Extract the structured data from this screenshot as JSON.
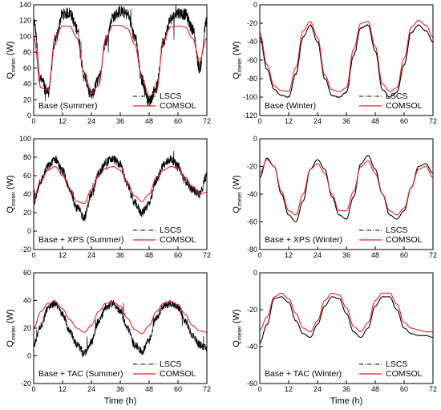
{
  "colors": {
    "lscs": "#000000",
    "comsol": "#e8202a",
    "axis": "#000000"
  },
  "legend": {
    "lscs": "LSCS",
    "comsol": "COMSOL"
  },
  "shared_x": {
    "label": "Time (h)",
    "ticks": [
      "0",
      "12",
      "24",
      "36",
      "48",
      "60",
      "72"
    ],
    "range": [
      0,
      72
    ]
  },
  "y_label": {
    "main": "Q",
    "sub": "meter",
    "unit": " (W)"
  },
  "chart_data": [
    {
      "type": "line",
      "title": "Base (Summer)",
      "xlim": [
        0,
        72
      ],
      "ylim": [
        0,
        140
      ],
      "yticks": [
        "0",
        "20",
        "40",
        "60",
        "80",
        "100",
        "120",
        "140"
      ],
      "legend_position": "bottom-right",
      "grid": false,
      "series": [
        {
          "name": "LSCS",
          "line": "dash-dot",
          "noise": 0.22,
          "x": [
            0,
            3,
            6,
            9,
            12,
            15,
            18,
            21,
            24,
            27,
            30,
            33,
            36,
            39,
            42,
            45,
            48,
            51,
            54,
            57,
            60,
            63,
            66,
            69,
            72
          ],
          "values": [
            120,
            45,
            30,
            95,
            128,
            130,
            110,
            50,
            25,
            45,
            95,
            125,
            132,
            128,
            100,
            45,
            18,
            35,
            95,
            122,
            130,
            128,
            110,
            60,
            120
          ]
        },
        {
          "name": "COMSOL",
          "line": "solid",
          "x": [
            0,
            3,
            6,
            9,
            12,
            15,
            18,
            21,
            24,
            27,
            30,
            33,
            36,
            39,
            42,
            45,
            48,
            51,
            54,
            57,
            60,
            63,
            66,
            69,
            72
          ],
          "values": [
            100,
            35,
            32,
            100,
            113,
            113,
            98,
            55,
            28,
            38,
            98,
            114,
            114,
            110,
            90,
            48,
            24,
            30,
            96,
            112,
            113,
            112,
            98,
            70,
            98
          ]
        }
      ]
    },
    {
      "type": "line",
      "title": "Base (Winter)",
      "xlim": [
        0,
        72
      ],
      "ylim": [
        -120,
        0
      ],
      "yticks": [
        "-120",
        "-100",
        "-80",
        "-60",
        "-40",
        "-20",
        "0"
      ],
      "legend_position": "bottom-right",
      "grid": false,
      "series": [
        {
          "name": "LSCS",
          "line": "dash-dot",
          "noise": 0.02,
          "x": [
            0,
            3,
            6,
            9,
            12,
            15,
            18,
            21,
            24,
            27,
            30,
            33,
            36,
            39,
            42,
            45,
            48,
            51,
            54,
            57,
            60,
            63,
            66,
            69,
            72
          ],
          "values": [
            -35,
            -70,
            -92,
            -98,
            -100,
            -75,
            -35,
            -22,
            -40,
            -80,
            -98,
            -100,
            -95,
            -55,
            -25,
            -22,
            -50,
            -92,
            -100,
            -95,
            -65,
            -30,
            -22,
            -28,
            -40
          ]
        },
        {
          "name": "COMSOL",
          "line": "solid",
          "x": [
            0,
            3,
            6,
            9,
            12,
            15,
            18,
            21,
            24,
            27,
            30,
            33,
            36,
            39,
            42,
            45,
            48,
            51,
            54,
            57,
            60,
            63,
            66,
            69,
            72
          ],
          "values": [
            -30,
            -65,
            -88,
            -93,
            -94,
            -68,
            -28,
            -18,
            -35,
            -76,
            -92,
            -94,
            -90,
            -48,
            -20,
            -18,
            -45,
            -86,
            -94,
            -90,
            -58,
            -24,
            -17,
            -22,
            -35
          ]
        }
      ]
    },
    {
      "type": "line",
      "title": "Base + XPS (Summer)",
      "xlim": [
        0,
        72
      ],
      "ylim": [
        -20,
        100
      ],
      "yticks": [
        "-20",
        "0",
        "20",
        "40",
        "60",
        "80",
        "100"
      ],
      "legend_position": "bottom-right",
      "grid": false,
      "series": [
        {
          "name": "LSCS",
          "line": "dash-dot",
          "noise": 0.16,
          "x": [
            0,
            3,
            6,
            9,
            12,
            15,
            18,
            21,
            24,
            27,
            30,
            33,
            36,
            39,
            42,
            45,
            48,
            51,
            54,
            57,
            60,
            63,
            66,
            69,
            72
          ],
          "values": [
            30,
            55,
            70,
            78,
            65,
            45,
            25,
            15,
            40,
            62,
            75,
            78,
            72,
            50,
            30,
            20,
            30,
            55,
            72,
            78,
            70,
            55,
            45,
            40,
            60
          ]
        },
        {
          "name": "COMSOL",
          "line": "solid",
          "x": [
            0,
            3,
            6,
            9,
            12,
            15,
            18,
            21,
            24,
            27,
            30,
            33,
            36,
            39,
            42,
            45,
            48,
            51,
            54,
            57,
            60,
            63,
            66,
            69,
            72
          ],
          "values": [
            35,
            55,
            66,
            70,
            60,
            45,
            32,
            30,
            45,
            60,
            68,
            70,
            66,
            52,
            38,
            32,
            40,
            58,
            66,
            70,
            68,
            58,
            48,
            40,
            42
          ]
        }
      ]
    },
    {
      "type": "line",
      "title": "Base + XPS (Winter)",
      "xlim": [
        0,
        72
      ],
      "ylim": [
        -80,
        0
      ],
      "yticks": [
        "-80",
        "-60",
        "-40",
        "-20",
        "0"
      ],
      "legend_position": "bottom-right",
      "grid": false,
      "series": [
        {
          "name": "LSCS",
          "line": "dash-dot",
          "noise": 0.0,
          "x": [
            0,
            3,
            6,
            9,
            12,
            15,
            18,
            21,
            24,
            27,
            30,
            33,
            36,
            39,
            42,
            45,
            48,
            51,
            54,
            57,
            60,
            63,
            66,
            69,
            72
          ],
          "values": [
            -28,
            -14,
            -20,
            -40,
            -55,
            -60,
            -45,
            -22,
            -15,
            -22,
            -42,
            -55,
            -58,
            -42,
            -18,
            -12,
            -22,
            -40,
            -55,
            -58,
            -52,
            -35,
            -20,
            -18,
            -25
          ]
        },
        {
          "name": "COMSOL",
          "line": "solid",
          "x": [
            0,
            3,
            6,
            9,
            12,
            15,
            18,
            21,
            24,
            27,
            30,
            33,
            36,
            39,
            42,
            45,
            48,
            51,
            54,
            57,
            60,
            63,
            66,
            69,
            72
          ],
          "values": [
            -25,
            -15,
            -20,
            -38,
            -52,
            -55,
            -40,
            -22,
            -18,
            -25,
            -40,
            -52,
            -52,
            -38,
            -20,
            -16,
            -25,
            -40,
            -52,
            -55,
            -50,
            -35,
            -22,
            -20,
            -28
          ]
        }
      ]
    },
    {
      "type": "line",
      "title": "Base + TAC (Summer)",
      "xlim": [
        0,
        72
      ],
      "ylim": [
        -20,
        60
      ],
      "yticks": [
        "-20",
        "0",
        "20",
        "40",
        "60"
      ],
      "legend_position": "bottom-right",
      "grid": false,
      "series": [
        {
          "name": "LSCS",
          "line": "dash-dot",
          "noise": 0.14,
          "x": [
            0,
            3,
            6,
            9,
            12,
            15,
            18,
            21,
            24,
            27,
            30,
            33,
            36,
            39,
            42,
            45,
            48,
            51,
            54,
            57,
            60,
            63,
            66,
            69,
            72
          ],
          "values": [
            8,
            22,
            35,
            38,
            30,
            18,
            8,
            2,
            10,
            25,
            35,
            38,
            32,
            20,
            8,
            3,
            12,
            28,
            36,
            38,
            35,
            25,
            15,
            8,
            5
          ]
        },
        {
          "name": "COMSOL",
          "line": "solid",
          "x": [
            0,
            3,
            6,
            9,
            12,
            15,
            18,
            21,
            24,
            27,
            30,
            33,
            36,
            39,
            42,
            45,
            48,
            51,
            54,
            57,
            60,
            63,
            66,
            69,
            72
          ],
          "values": [
            20,
            32,
            38,
            39,
            34,
            26,
            20,
            17,
            22,
            32,
            38,
            39,
            36,
            27,
            19,
            16,
            22,
            32,
            38,
            39,
            37,
            30,
            22,
            18,
            17
          ]
        }
      ]
    },
    {
      "type": "line",
      "title": "Base + TAC (Winter)",
      "xlim": [
        0,
        72
      ],
      "ylim": [
        -60,
        0
      ],
      "yticks": [
        "-60",
        "-40",
        "-20",
        "0"
      ],
      "legend_position": "bottom-right",
      "grid": false,
      "series": [
        {
          "name": "LSCS",
          "line": "dash-dot",
          "noise": 0.0,
          "x": [
            0,
            3,
            6,
            9,
            12,
            15,
            18,
            21,
            24,
            27,
            30,
            33,
            36,
            39,
            42,
            45,
            48,
            51,
            54,
            57,
            60,
            63,
            66,
            69,
            72
          ],
          "values": [
            -38,
            -28,
            -14,
            -13,
            -16,
            -26,
            -33,
            -35,
            -28,
            -18,
            -13,
            -14,
            -22,
            -32,
            -35,
            -30,
            -18,
            -13,
            -13,
            -20,
            -30,
            -33,
            -34,
            -34,
            -35
          ]
        },
        {
          "name": "COMSOL",
          "line": "solid",
          "x": [
            0,
            3,
            6,
            9,
            12,
            15,
            18,
            21,
            24,
            27,
            30,
            33,
            36,
            39,
            42,
            45,
            48,
            51,
            54,
            57,
            60,
            63,
            66,
            69,
            72
          ],
          "values": [
            -31,
            -24,
            -13,
            -11,
            -14,
            -22,
            -30,
            -32,
            -26,
            -15,
            -11,
            -12,
            -19,
            -29,
            -32,
            -27,
            -15,
            -11,
            -11,
            -17,
            -27,
            -30,
            -31,
            -32,
            -32
          ]
        }
      ]
    }
  ]
}
